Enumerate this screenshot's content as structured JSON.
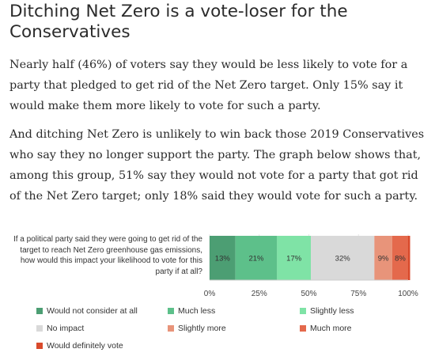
{
  "title": "Ditching Net Zero is a vote-loser for the Conservatives",
  "paragraphs": [
    "Nearly half (46%) of voters say they would be less likely to vote for a party that pledged to get rid of the Net Zero target. Only 15% say it would make them more likely to vote for such a party.",
    "And ditching Net Zero is unlikely to win back those 2019 Conservatives who say they no longer support the party. The graph below shows that, among this group, 51% say they would not vote for a party that got rid of the Net Zero target; only 18% said they would vote for such a party."
  ],
  "chart_data": {
    "type": "bar",
    "orientation": "horizontal-stacked",
    "category_label": "If a political party said they were going to get rid of the target to reach Net Zero greenhouse gas emissions, how would this impact your likelihood to vote for this party if at all?",
    "series": [
      {
        "name": "Would not consider at all",
        "value": 13,
        "label": "13%",
        "color": "#4c9e73"
      },
      {
        "name": "Much less",
        "value": 21,
        "label": "21%",
        "color": "#5dc08a"
      },
      {
        "name": "Slightly less",
        "value": 17,
        "label": "17%",
        "color": "#7fe3a6"
      },
      {
        "name": "No impact",
        "value": 32,
        "label": "32%",
        "color": "#d9d9d9"
      },
      {
        "name": "Slightly more",
        "value": 9,
        "label": "9%",
        "color": "#e8947a"
      },
      {
        "name": "Much more",
        "value": 8,
        "label": "8%",
        "color": "#e4694c"
      },
      {
        "name": "Would definitely vote",
        "value": 1,
        "label": "",
        "color": "#d94a2c"
      }
    ],
    "xlim": [
      0,
      100
    ],
    "x_ticks": [
      "0%",
      "25%",
      "50%",
      "75%",
      "100%"
    ],
    "grid": true,
    "legend_position": "bottom"
  }
}
